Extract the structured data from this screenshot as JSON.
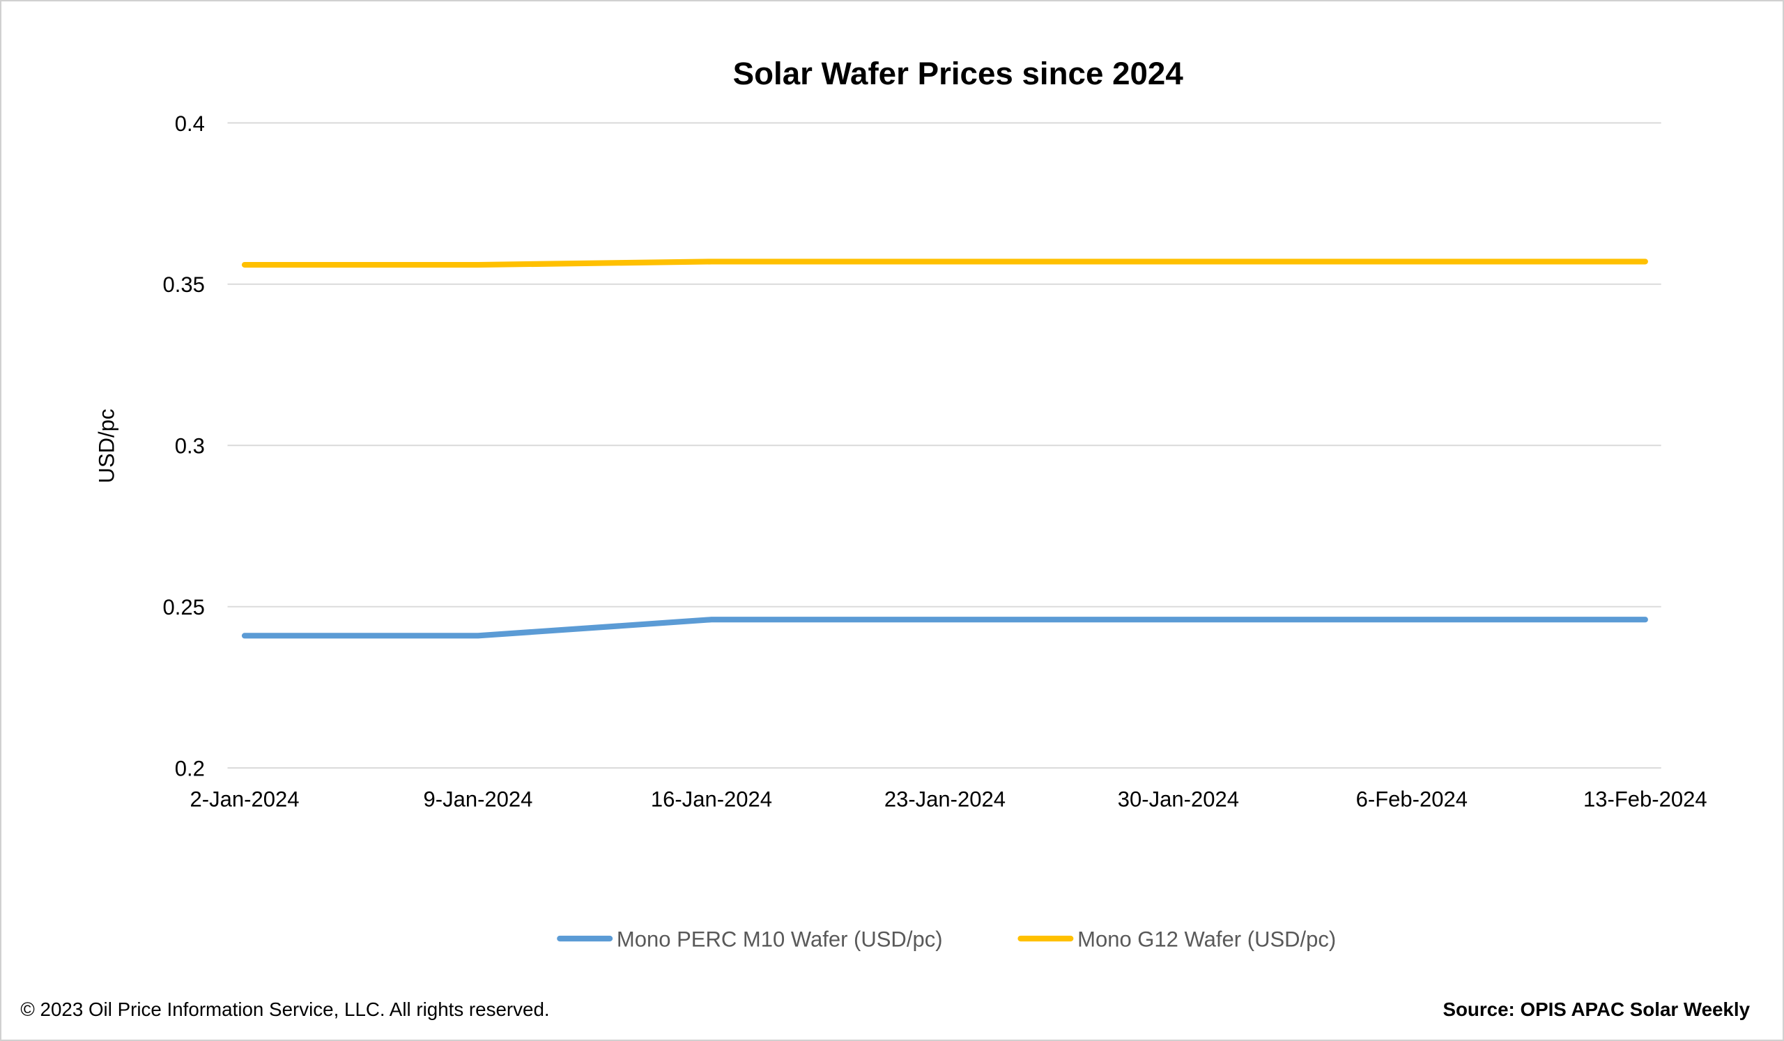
{
  "chart_data": {
    "type": "line",
    "title": "Solar Wafer Prices since 2024",
    "xlabel": "",
    "ylabel": "USD/pc",
    "categories": [
      "2-Jan-2024",
      "9-Jan-2024",
      "16-Jan-2024",
      "23-Jan-2024",
      "30-Jan-2024",
      "6-Feb-2024",
      "13-Feb-2024"
    ],
    "ylim": [
      0.2,
      0.4
    ],
    "yticks": [
      "0.2",
      "0.25",
      "0.3",
      "0.35",
      "0.4"
    ],
    "grid": true,
    "legend_position": "bottom",
    "series": [
      {
        "name": "Mono PERC M10 Wafer (USD/pc)",
        "color": "#5b9bd5",
        "values": [
          0.241,
          0.241,
          0.246,
          0.246,
          0.246,
          0.246,
          0.246
        ]
      },
      {
        "name": "Mono G12 Wafer (USD/pc)",
        "color": "#ffc000",
        "values": [
          0.356,
          0.356,
          0.357,
          0.357,
          0.357,
          0.357,
          0.357
        ]
      }
    ]
  },
  "footer": {
    "copyright": "© 2023 Oil Price Information Service, LLC. All rights reserved.",
    "source": "Source: OPIS APAC Solar Weekly"
  }
}
